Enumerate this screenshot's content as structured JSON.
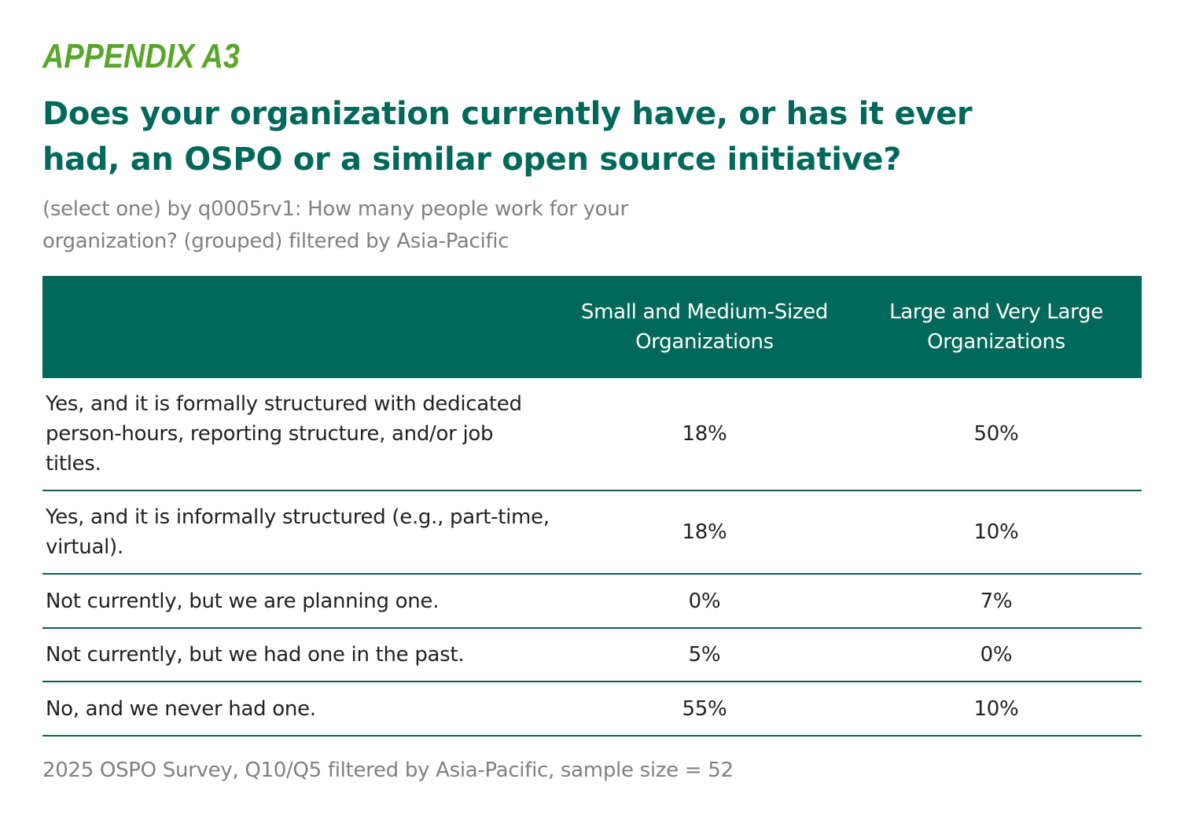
{
  "appendix_label": "APPENDIX A3",
  "title": "Does your organization currently have, or has it ever had, an OSPO or a similar open source initiative?",
  "subtitle": "(select one) by q0005rv1: How many people work for your organization? (grouped) filtered by Asia-Pacific",
  "colors": {
    "accent_green": "#5aa62a",
    "brand_teal": "#02695a",
    "muted_gray": "#808080"
  },
  "table": {
    "headers": [
      "",
      "Small and Medium-Sized Organizations",
      "Large and Very Large Organizations"
    ],
    "rows": [
      {
        "label": "Yes, and it is formally structured with dedicated person-hours, reporting structure, and/or job titles.",
        "small_medium": "18%",
        "large": "50%"
      },
      {
        "label": "Yes, and it is informally structured (e.g., part-time, virtual).",
        "small_medium": "18%",
        "large": "10%"
      },
      {
        "label": "Not currently, but we are planning one.",
        "small_medium": "0%",
        "large": "7%"
      },
      {
        "label": "Not currently, but we had one in the past.",
        "small_medium": "5%",
        "large": "0%"
      },
      {
        "label": "No, and we never had one.",
        "small_medium": "55%",
        "large": "10%"
      }
    ]
  },
  "footer": "2025 OSPO Survey, Q10/Q5 filtered by Asia-Pacific, sample size = 52"
}
